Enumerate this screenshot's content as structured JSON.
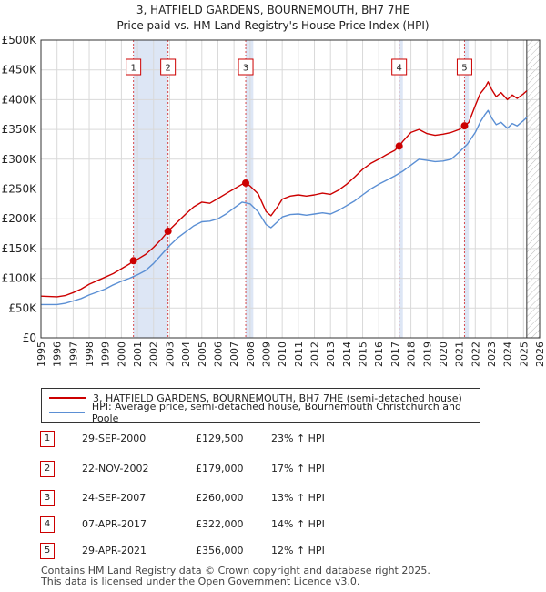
{
  "title_line1": "3, HATFIELD GARDENS, BOURNEMOUTH, BH7 7HE",
  "title_line2": "Price paid vs. HM Land Registry's House Price Index (HPI)",
  "legend": {
    "property_label": "3, HATFIELD GARDENS, BOURNEMOUTH, BH7 7HE (semi-detached house)",
    "hpi_label": "HPI: Average price, semi-detached house, Bournemouth Christchurch and Poole"
  },
  "colors": {
    "property": "#cc0000",
    "hpi": "#5b8fd4",
    "shade": "#dde6f5",
    "grid": "#d9d9d9"
  },
  "sales": [
    {
      "num": "1",
      "date": "29-SEP-2000",
      "price": "£129,500",
      "hpi": "23% ↑ HPI"
    },
    {
      "num": "2",
      "date": "22-NOV-2002",
      "price": "£179,000",
      "hpi": "17% ↑ HPI"
    },
    {
      "num": "3",
      "date": "24-SEP-2007",
      "price": "£260,000",
      "hpi": "13% ↑ HPI"
    },
    {
      "num": "4",
      "date": "07-APR-2017",
      "price": "£322,000",
      "hpi": "14% ↑ HPI"
    },
    {
      "num": "5",
      "date": "29-APR-2021",
      "price": "£356,000",
      "hpi": "12% ↑ HPI"
    }
  ],
  "footer_line1": "Contains HM Land Registry data © Crown copyright and database right 2025.",
  "footer_line2": "This data is licensed under the Open Government Licence v3.0.",
  "chart_data": {
    "type": "line",
    "title": "3, HATFIELD GARDENS, BOURNEMOUTH, BH7 7HE",
    "subtitle": "Price paid vs. HM Land Registry's House Price Index (HPI)",
    "xlabel": "",
    "ylabel": "",
    "xlim": [
      1995,
      2026
    ],
    "ylim": [
      0,
      500000
    ],
    "y_ticks": [
      0,
      50000,
      100000,
      150000,
      200000,
      250000,
      300000,
      350000,
      400000,
      450000,
      500000
    ],
    "y_tick_labels": [
      "£0",
      "£50K",
      "£100K",
      "£150K",
      "£200K",
      "£250K",
      "£300K",
      "£350K",
      "£400K",
      "£450K",
      "£500K"
    ],
    "x_ticks": [
      1995,
      1996,
      1997,
      1998,
      1999,
      2000,
      2001,
      2002,
      2003,
      2004,
      2005,
      2006,
      2007,
      2008,
      2009,
      2010,
      2011,
      2012,
      2013,
      2014,
      2015,
      2016,
      2017,
      2018,
      2019,
      2020,
      2021,
      2022,
      2023,
      2024,
      2025,
      2026
    ],
    "x_tick_labels": [
      "1995",
      "1996",
      "1997",
      "1998",
      "1999",
      "2000",
      "2001",
      "2002",
      "2003",
      "2004",
      "2005",
      "2006",
      "2007",
      "2008",
      "2009",
      "2010",
      "2011",
      "2012",
      "2013",
      "2014",
      "2015",
      "2016",
      "2017",
      "2018",
      "2019",
      "2020",
      "2021",
      "2022",
      "2023",
      "2024",
      "2025",
      "2026"
    ],
    "grid": true,
    "shaded_spans": [
      [
        2000.75,
        2002.9
      ],
      [
        2007.73,
        2008.2
      ],
      [
        2017.27,
        2017.5
      ],
      [
        2021.33,
        2021.6
      ]
    ],
    "future_hatch_start": 2025.2,
    "series": [
      {
        "name": "3, HATFIELD GARDENS, BOURNEMOUTH, BH7 7HE (semi-detached house)",
        "x": [
          1995.0,
          1996.0,
          1996.5,
          1997.0,
          1997.5,
          1998.0,
          1998.5,
          1999.0,
          1999.5,
          2000.0,
          2000.5,
          2000.75,
          2001.0,
          2001.5,
          2002.0,
          2002.5,
          2002.9,
          2003.5,
          2004.0,
          2004.5,
          2005.0,
          2005.5,
          2006.0,
          2006.5,
          2007.0,
          2007.5,
          2007.73,
          2008.0,
          2008.5,
          2009.0,
          2009.3,
          2009.7,
          2010.0,
          2010.5,
          2011.0,
          2011.5,
          2012.0,
          2012.5,
          2013.0,
          2013.5,
          2014.0,
          2014.5,
          2015.0,
          2015.5,
          2016.0,
          2016.5,
          2017.0,
          2017.27,
          2017.5,
          2018.0,
          2018.5,
          2019.0,
          2019.5,
          2020.0,
          2020.5,
          2021.0,
          2021.33,
          2021.6,
          2022.0,
          2022.3,
          2022.6,
          2022.8,
          2023.0,
          2023.3,
          2023.6,
          2024.0,
          2024.3,
          2024.6,
          2025.0,
          2025.2
        ],
        "values": [
          70000,
          69000,
          71000,
          76000,
          82000,
          90000,
          96000,
          102000,
          108000,
          116000,
          124000,
          129500,
          132000,
          140000,
          152000,
          166000,
          179000,
          195000,
          208000,
          220000,
          228000,
          226000,
          234000,
          242000,
          250000,
          258000,
          260000,
          255000,
          242000,
          212000,
          205000,
          220000,
          233000,
          238000,
          240000,
          238000,
          240000,
          243000,
          241000,
          248000,
          258000,
          270000,
          283000,
          293000,
          300000,
          308000,
          315000,
          322000,
          330000,
          345000,
          350000,
          343000,
          340000,
          342000,
          345000,
          350000,
          356000,
          362000,
          390000,
          410000,
          420000,
          430000,
          418000,
          405000,
          412000,
          400000,
          408000,
          402000,
          410000,
          415000
        ]
      },
      {
        "name": "HPI: Average price, semi-detached house, Bournemouth Christchurch and Poole",
        "x": [
          1995.0,
          1996.0,
          1996.5,
          1997.0,
          1997.5,
          1998.0,
          1998.5,
          1999.0,
          1999.5,
          2000.0,
          2000.5,
          2001.0,
          2001.5,
          2002.0,
          2002.5,
          2003.0,
          2003.5,
          2004.0,
          2004.5,
          2005.0,
          2005.5,
          2006.0,
          2006.5,
          2007.0,
          2007.5,
          2008.0,
          2008.5,
          2009.0,
          2009.3,
          2009.7,
          2010.0,
          2010.5,
          2011.0,
          2011.5,
          2012.0,
          2012.5,
          2013.0,
          2013.5,
          2014.0,
          2014.5,
          2015.0,
          2015.5,
          2016.0,
          2016.5,
          2017.0,
          2017.5,
          2018.0,
          2018.5,
          2019.0,
          2019.5,
          2020.0,
          2020.5,
          2021.0,
          2021.5,
          2022.0,
          2022.3,
          2022.6,
          2022.8,
          2023.0,
          2023.3,
          2023.6,
          2024.0,
          2024.3,
          2024.6,
          2025.0,
          2025.2
        ],
        "values": [
          56000,
          56000,
          58000,
          62000,
          66000,
          72000,
          77000,
          82000,
          89000,
          95000,
          100000,
          106000,
          113000,
          125000,
          140000,
          155000,
          168000,
          178000,
          188000,
          195000,
          196000,
          200000,
          208000,
          218000,
          228000,
          225000,
          212000,
          190000,
          185000,
          195000,
          203000,
          207000,
          208000,
          206000,
          208000,
          210000,
          208000,
          214000,
          222000,
          230000,
          240000,
          250000,
          258000,
          265000,
          272000,
          280000,
          290000,
          300000,
          298000,
          296000,
          297000,
          300000,
          312000,
          325000,
          345000,
          362000,
          375000,
          382000,
          370000,
          358000,
          362000,
          352000,
          360000,
          356000,
          365000,
          370000
        ]
      }
    ],
    "sale_markers": [
      {
        "label": "1",
        "x": 2000.75,
        "y": 129500
      },
      {
        "label": "2",
        "x": 2002.9,
        "y": 179000
      },
      {
        "label": "3",
        "x": 2007.73,
        "y": 260000
      },
      {
        "label": "4",
        "x": 2017.27,
        "y": 322000
      },
      {
        "label": "5",
        "x": 2021.33,
        "y": 356000
      }
    ]
  }
}
